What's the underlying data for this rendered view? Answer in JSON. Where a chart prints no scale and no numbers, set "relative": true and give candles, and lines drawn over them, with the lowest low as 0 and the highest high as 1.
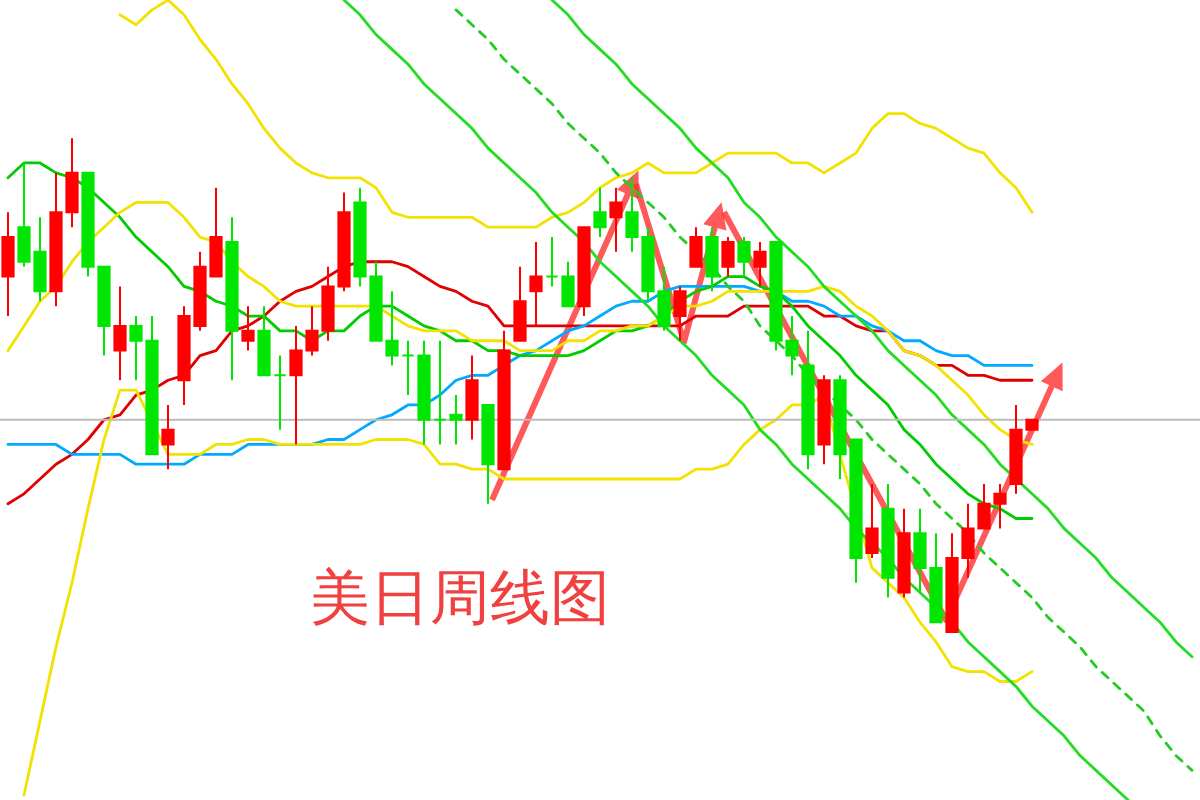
{
  "chart_data": {
    "type": "candlestick",
    "title": "美日周线图",
    "relative": true,
    "categories": [
      null,
      null,
      null,
      null,
      null,
      null,
      null,
      null,
      null,
      null,
      null,
      null,
      null,
      null,
      null,
      null,
      null,
      null,
      null,
      null,
      null,
      null,
      null,
      null,
      null,
      null,
      null,
      null,
      null,
      null,
      null,
      null,
      null,
      null,
      null,
      null,
      null,
      null,
      null,
      null,
      null,
      null,
      null,
      null,
      null,
      null,
      null,
      null,
      null,
      null,
      null,
      null,
      null,
      null,
      null,
      null,
      null,
      null,
      null,
      null,
      null,
      null,
      null,
      null,
      null,
      null,
      null,
      null,
      null,
      null,
      null,
      null,
      null,
      null,
      null
    ],
    "series": [
      {
        "color": "#e00000",
        "values": [
          0.26,
          0.28,
          0.31,
          0.34,
          0.36,
          0.39,
          0.43,
          0.44,
          0.48,
          0.49,
          0.51,
          0.52,
          0.56,
          0.57,
          0.61,
          0.62,
          0.64,
          0.67,
          0.69,
          0.7,
          0.72,
          0.74,
          0.75,
          0.75,
          0.75,
          0.74,
          0.72,
          0.7,
          0.69,
          0.67,
          0.66,
          0.62,
          0.62,
          0.62,
          0.62,
          0.62,
          0.62,
          0.62,
          0.62,
          0.62,
          0.62,
          0.62,
          0.62,
          0.64,
          0.64,
          0.64,
          0.66,
          0.66,
          0.66,
          0.66,
          0.66,
          0.64,
          0.64,
          0.62,
          0.61,
          0.61,
          0.57,
          0.56,
          0.54,
          0.54,
          0.52,
          0.52,
          0.51,
          0.51,
          0.51,
          null,
          null,
          null,
          null,
          null,
          null,
          null,
          null,
          null,
          null
        ],
        "type": "line"
      },
      {
        "color": "#00aaff",
        "values": [
          0.38,
          0.38,
          0.38,
          0.38,
          0.36,
          0.36,
          0.36,
          0.36,
          0.34,
          0.34,
          0.34,
          0.34,
          0.36,
          0.36,
          0.36,
          0.38,
          0.38,
          0.38,
          0.38,
          0.38,
          0.39,
          0.39,
          0.41,
          0.43,
          0.44,
          0.46,
          0.46,
          0.48,
          0.51,
          0.52,
          0.52,
          0.54,
          0.56,
          0.57,
          0.59,
          0.61,
          0.62,
          0.64,
          0.66,
          0.67,
          0.67,
          0.69,
          0.7,
          0.7,
          0.7,
          0.7,
          0.7,
          0.69,
          0.69,
          0.67,
          0.67,
          0.66,
          0.64,
          0.64,
          0.62,
          0.61,
          0.59,
          0.59,
          0.57,
          0.56,
          0.56,
          0.54,
          0.54,
          0.54,
          0.54,
          null,
          null,
          null,
          null,
          null,
          null,
          null,
          null,
          null,
          null
        ],
        "type": "line"
      },
      {
        "color": "#00cc00",
        "values": [
          0.92,
          0.95,
          0.95,
          0.93,
          0.92,
          0.9,
          0.87,
          0.84,
          0.8,
          0.77,
          0.74,
          0.7,
          0.69,
          0.67,
          0.66,
          0.64,
          0.64,
          0.61,
          0.61,
          0.59,
          0.61,
          0.61,
          0.64,
          0.66,
          0.66,
          0.64,
          0.62,
          0.61,
          0.59,
          0.59,
          0.57,
          0.57,
          0.56,
          0.56,
          0.56,
          0.56,
          0.57,
          0.59,
          0.61,
          0.61,
          0.62,
          0.64,
          0.67,
          0.69,
          0.7,
          0.72,
          0.72,
          0.7,
          0.69,
          0.66,
          0.62,
          0.59,
          0.56,
          0.52,
          0.49,
          0.46,
          0.41,
          0.38,
          0.34,
          0.31,
          0.28,
          0.26,
          0.25,
          0.23,
          0.23,
          null,
          null,
          null,
          null,
          null,
          null,
          null,
          null,
          null,
          null
        ],
        "type": "line"
      },
      {
        "color": "#f2e200",
        "values": [
          null,
          null,
          null,
          null,
          null,
          null,
          null,
          1.25,
          1.23,
          1.26,
          1.28,
          1.25,
          1.2,
          1.16,
          1.11,
          1.07,
          1.02,
          0.98,
          0.95,
          0.93,
          0.92,
          0.92,
          0.92,
          0.9,
          0.85,
          0.84,
          0.84,
          0.84,
          0.84,
          0.84,
          0.82,
          0.82,
          0.82,
          0.82,
          0.84,
          0.85,
          0.87,
          0.9,
          0.92,
          0.93,
          0.95,
          0.93,
          0.93,
          0.93,
          0.95,
          0.97,
          0.97,
          0.97,
          0.97,
          0.95,
          0.95,
          0.93,
          0.95,
          0.97,
          1.02,
          1.05,
          1.05,
          1.03,
          1.02,
          1.0,
          0.98,
          0.97,
          0.93,
          0.9,
          0.85,
          null,
          null,
          null,
          null,
          null,
          null,
          null,
          null,
          null,
          null
        ],
        "type": "line"
      },
      {
        "color": "#f2e200",
        "values": [
          0.57,
          0.62,
          0.67,
          0.7,
          0.75,
          0.79,
          0.82,
          0.85,
          0.87,
          0.87,
          0.87,
          0.84,
          0.8,
          0.79,
          0.75,
          0.72,
          0.7,
          0.67,
          0.66,
          0.66,
          0.66,
          0.66,
          0.66,
          0.66,
          0.64,
          0.62,
          0.61,
          0.61,
          0.61,
          0.59,
          0.59,
          0.59,
          0.57,
          0.57,
          0.57,
          0.59,
          0.59,
          0.61,
          0.61,
          0.62,
          0.62,
          0.64,
          0.66,
          0.66,
          0.67,
          0.69,
          0.69,
          0.69,
          0.69,
          0.69,
          0.69,
          0.7,
          0.69,
          0.66,
          0.64,
          0.61,
          0.57,
          0.56,
          0.54,
          0.51,
          0.48,
          0.44,
          0.41,
          0.39,
          0.38,
          null,
          null,
          null,
          null,
          null,
          null,
          null,
          null,
          null,
          null
        ],
        "type": "line"
      },
      {
        "color": "#f2e200",
        "values": [
          null,
          -0.33,
          -0.18,
          -0.03,
          0.1,
          0.25,
          0.39,
          0.49,
          0.49,
          null,
          0.36,
          0.36,
          0.36,
          0.38,
          0.38,
          0.39,
          0.39,
          0.38,
          0.38,
          0.38,
          0.38,
          0.38,
          0.38,
          0.39,
          0.39,
          0.39,
          0.38,
          0.34,
          0.34,
          0.33,
          0.33,
          0.31,
          0.31,
          0.31,
          0.31,
          0.31,
          0.31,
          0.31,
          0.31,
          0.31,
          0.31,
          0.31,
          0.31,
          0.33,
          0.33,
          0.34,
          0.38,
          0.41,
          0.43,
          0.46,
          0.46,
          0.48,
          0.36,
          null,
          0.13,
          0.1,
          0.07,
          0.02,
          -0.02,
          -0.07,
          -0.08,
          -0.08,
          -0.1,
          -0.1,
          -0.08,
          null,
          null,
          null,
          null,
          null,
          null,
          null,
          null,
          null,
          null
        ],
        "type": "line"
      },
      {
        "color": "#22dd22",
        "values": [
          null,
          null,
          null,
          null,
          null,
          null,
          null,
          null,
          null,
          null,
          null,
          null,
          null,
          null,
          null,
          null,
          null,
          null,
          null,
          null,
          null,
          1.28,
          1.25,
          1.21,
          1.18,
          1.15,
          1.11,
          1.08,
          1.05,
          1.02,
          0.98,
          0.95,
          0.92,
          0.89,
          0.85,
          0.82,
          0.79,
          0.75,
          0.72,
          0.69,
          0.66,
          0.62,
          0.59,
          0.56,
          0.52,
          0.49,
          0.46,
          0.41,
          0.38,
          0.34,
          0.31,
          0.28,
          0.25,
          0.21,
          0.18,
          0.15,
          0.11,
          0.08,
          0.05,
          0.02,
          -0.02,
          -0.05,
          -0.08,
          -0.11,
          -0.15,
          -0.18,
          -0.21,
          -0.25,
          -0.28,
          -0.31,
          -0.34,
          null,
          null,
          null,
          null
        ],
        "type": "line"
      },
      {
        "color": "#22dd22",
        "values": [
          null,
          null,
          null,
          null,
          null,
          null,
          null,
          null,
          null,
          null,
          null,
          null,
          null,
          null,
          null,
          null,
          null,
          null,
          null,
          null,
          null,
          null,
          null,
          null,
          null,
          null,
          null,
          null,
          null,
          null,
          null,
          null,
          null,
          null,
          1.28,
          1.25,
          1.21,
          1.18,
          1.15,
          1.11,
          1.08,
          1.05,
          1.02,
          0.98,
          0.95,
          0.92,
          0.87,
          0.84,
          0.8,
          0.77,
          0.74,
          0.7,
          0.67,
          0.64,
          0.61,
          0.57,
          0.54,
          0.51,
          0.48,
          0.44,
          0.41,
          0.38,
          0.34,
          0.31,
          0.28,
          0.25,
          0.21,
          0.18,
          0.15,
          0.11,
          0.08,
          0.05,
          0.02,
          -0.02,
          -0.05
        ],
        "type": "line"
      },
      {
        "color": "#22cc22",
        "line_style": "dashed",
        "values": [
          null,
          null,
          null,
          null,
          null,
          null,
          null,
          null,
          null,
          null,
          null,
          null,
          null,
          null,
          null,
          null,
          null,
          null,
          null,
          null,
          null,
          null,
          null,
          null,
          null,
          null,
          null,
          null,
          1.26,
          1.23,
          1.2,
          1.16,
          1.13,
          1.1,
          1.07,
          1.03,
          1.0,
          0.97,
          0.93,
          0.9,
          0.87,
          0.84,
          0.8,
          0.77,
          0.74,
          0.7,
          0.67,
          0.62,
          0.59,
          0.56,
          0.52,
          0.49,
          0.46,
          0.43,
          0.39,
          0.36,
          0.33,
          0.3,
          0.26,
          0.23,
          0.2,
          0.16,
          0.13,
          0.1,
          0.07,
          0.03,
          0,
          -0.03,
          -0.07,
          -0.1,
          -0.13,
          -0.16,
          -0.21,
          -0.25,
          -0.28
        ],
        "type": "line"
      },
      {
        "type": "candlestick",
        "ohlc": [
          [
            0.72,
            0.85,
            0.64,
            0.8
          ],
          [
            0.82,
            0.95,
            0.74,
            0.75
          ],
          [
            0.77,
            0.84,
            0.67,
            0.69
          ],
          [
            0.69,
            0.93,
            0.66,
            0.85
          ],
          [
            0.85,
            1.0,
            0.82,
            0.93
          ],
          [
            0.93,
            0.93,
            0.72,
            0.74
          ],
          [
            0.74,
            0.74,
            0.56,
            0.62
          ],
          [
            0.57,
            0.7,
            0.51,
            0.62
          ],
          [
            0.62,
            0.64,
            0.51,
            0.59
          ],
          [
            0.59,
            0.64,
            0.36,
            0.36
          ],
          [
            0.38,
            0.46,
            0.33,
            0.41
          ],
          [
            0.51,
            0.66,
            0.46,
            0.64
          ],
          [
            0.62,
            0.77,
            0.61,
            0.74
          ],
          [
            0.72,
            0.9,
            0.72,
            0.8
          ],
          [
            0.79,
            0.84,
            0.51,
            0.61
          ],
          [
            0.59,
            0.66,
            0.57,
            0.61
          ],
          [
            0.61,
            0.66,
            0.52,
            0.52
          ],
          [
            0.52,
            0.56,
            0.41,
            0.52
          ],
          [
            0.52,
            0.62,
            0.38,
            0.57
          ],
          [
            0.57,
            0.66,
            0.56,
            0.61
          ],
          [
            0.61,
            0.74,
            0.59,
            0.7
          ],
          [
            0.7,
            0.89,
            0.69,
            0.85
          ],
          [
            0.87,
            0.9,
            0.7,
            0.72
          ],
          [
            0.72,
            0.75,
            0.59,
            0.59
          ],
          [
            0.59,
            0.69,
            0.54,
            0.56
          ],
          [
            0.56,
            0.59,
            0.48,
            0.56
          ],
          [
            0.56,
            0.59,
            0.38,
            0.43
          ],
          [
            0.43,
            0.59,
            0.38,
            0.43
          ],
          [
            0.44,
            0.48,
            0.38,
            0.43
          ],
          [
            0.43,
            0.56,
            0.39,
            0.51
          ],
          [
            0.46,
            0.46,
            0.26,
            0.34
          ],
          [
            0.33,
            0.61,
            0.33,
            0.57
          ],
          [
            0.59,
            0.74,
            0.59,
            0.67
          ],
          [
            0.69,
            0.79,
            0.62,
            0.72
          ],
          [
            0.72,
            0.8,
            0.7,
            0.72
          ],
          [
            0.72,
            0.75,
            0.66,
            0.66
          ],
          [
            0.66,
            0.82,
            0.64,
            0.82
          ],
          [
            0.85,
            0.9,
            0.8,
            0.82
          ],
          [
            0.84,
            0.9,
            0.77,
            0.87
          ],
          [
            0.85,
            0.92,
            0.77,
            0.8
          ],
          [
            0.8,
            0.82,
            0.67,
            0.69
          ],
          [
            0.69,
            0.74,
            0.61,
            0.62
          ],
          [
            0.64,
            0.7,
            0.59,
            0.69
          ],
          [
            0.74,
            0.82,
            0.74,
            0.8
          ],
          [
            0.8,
            0.82,
            0.69,
            0.72
          ],
          [
            0.74,
            0.8,
            0.72,
            0.79
          ],
          [
            0.79,
            0.8,
            0.72,
            0.75
          ],
          [
            0.74,
            0.79,
            0.7,
            0.77
          ],
          [
            0.79,
            0.79,
            0.57,
            0.59
          ],
          [
            0.59,
            0.64,
            0.52,
            0.56
          ],
          [
            0.54,
            0.61,
            0.33,
            0.36
          ],
          [
            0.38,
            0.52,
            0.34,
            0.51
          ],
          [
            0.51,
            0.52,
            0.31,
            0.36
          ],
          [
            0.39,
            0.39,
            0.1,
            0.15
          ],
          [
            0.16,
            0.3,
            0.15,
            0.21
          ],
          [
            0.25,
            0.3,
            0.07,
            0.11
          ],
          [
            0.08,
            0.25,
            0.07,
            0.2
          ],
          [
            0.2,
            0.25,
            0.08,
            0.13
          ],
          [
            0.13,
            0.2,
            0.02,
            0.02
          ],
          [
            0,
            0.2,
            0,
            0.15
          ],
          [
            0.15,
            0.26,
            0.11,
            0.21
          ],
          [
            0.21,
            0.3,
            0.21,
            0.26
          ],
          [
            0.26,
            0.3,
            0.21,
            0.28
          ],
          [
            0.3,
            0.46,
            0.28,
            0.41
          ],
          [
            0.41,
            0.43,
            0.41,
            0.43
          ],
          null,
          null,
          null,
          null,
          null,
          null,
          null,
          null,
          null,
          null
        ],
        "colors": [
          "#ff0000",
          "#00e600",
          "#00e600",
          "#ff0000",
          "#ff0000",
          "#00e600",
          "#00e600",
          "#ff0000",
          "#00e600",
          "#00e600",
          "#ff0000",
          "#ff0000",
          "#ff0000",
          "#ff0000",
          "#00e600",
          "#ff0000",
          "#00e600",
          "#00e600",
          "#ff0000",
          "#ff0000",
          "#ff0000",
          "#ff0000",
          "#00e600",
          "#00e600",
          "#00e600",
          "#00e600",
          "#00e600",
          "#00e600",
          "#00e600",
          "#ff0000",
          "#00e600",
          "#ff0000",
          "#ff0000",
          "#ff0000",
          "#00e600",
          "#00e600",
          "#ff0000",
          "#00e600",
          "#ff0000",
          "#00e600",
          "#00e600",
          "#00e600",
          "#ff0000",
          "#ff0000",
          "#00e600",
          "#ff0000",
          "#00e600",
          "#ff0000",
          "#00e600",
          "#00e600",
          "#00e600",
          "#ff0000",
          "#00e600",
          "#00e600",
          "#ff0000",
          "#00e600",
          "#ff0000",
          "#00e600",
          "#00e600",
          "#ff0000",
          "#ff0000",
          "#ff0000",
          "#ff0000",
          "#ff0000",
          "#ff0000",
          null,
          null,
          null,
          null,
          null,
          null,
          null,
          null,
          null,
          null
        ]
      }
    ],
    "ref_lines": [
      {
        "axis": "y",
        "value": 0.43,
        "color": "#bbbbbb"
      }
    ]
  }
}
